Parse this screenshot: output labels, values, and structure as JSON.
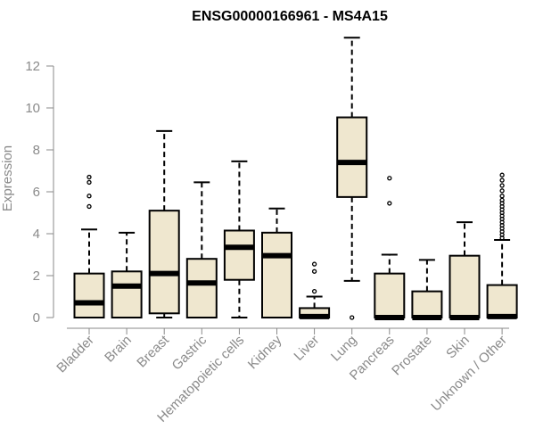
{
  "chart_data": {
    "type": "boxplot",
    "title": "ENSG00000166961 - MS4A15",
    "xlabel": "",
    "ylabel": "Expression",
    "ylim": [
      0,
      12.6
    ],
    "yticks": [
      0,
      2,
      4,
      6,
      8,
      10,
      12
    ],
    "box_color": "#efe7cf",
    "categories": [
      "Bladder",
      "Brain",
      "Breast",
      "Gastric",
      "Hematopoietic cells",
      "Kidney",
      "Liver",
      "Lung",
      "Pancreas",
      "Prostate",
      "Skin",
      "Unknown / Other"
    ],
    "boxes": [
      {
        "category": "Bladder",
        "whisker_low": 0,
        "q1": 0,
        "median": 0.7,
        "q3": 2.1,
        "whisker_high": 4.2,
        "outliers": [
          5.3,
          5.8,
          6.45,
          6.7
        ]
      },
      {
        "category": "Brain",
        "whisker_low": 0,
        "q1": 0,
        "median": 1.5,
        "q3": 2.2,
        "whisker_high": 4.05,
        "outliers": []
      },
      {
        "category": "Breast",
        "whisker_low": 0,
        "q1": 0.2,
        "median": 2.1,
        "q3": 5.1,
        "whisker_high": 8.9,
        "outliers": []
      },
      {
        "category": "Gastric",
        "whisker_low": 0,
        "q1": 0,
        "median": 1.65,
        "q3": 2.8,
        "whisker_high": 6.45,
        "outliers": []
      },
      {
        "category": "Hematopoietic cells",
        "whisker_low": 0,
        "q1": 1.8,
        "median": 3.35,
        "q3": 4.15,
        "whisker_high": 7.45,
        "outliers": []
      },
      {
        "category": "Kidney",
        "whisker_low": 0,
        "q1": 0,
        "median": 2.95,
        "q3": 4.05,
        "whisker_high": 5.2,
        "outliers": []
      },
      {
        "category": "Liver",
        "whisker_low": 0,
        "q1": 0,
        "median": 0.05,
        "q3": 0.45,
        "whisker_high": 1.0,
        "outliers": [
          1.25,
          2.2,
          2.55
        ]
      },
      {
        "category": "Lung",
        "whisker_low": 1.75,
        "q1": 5.75,
        "median": 7.4,
        "q3": 9.55,
        "whisker_high": 13.35,
        "outliers": [
          0
        ]
      },
      {
        "category": "Pancreas",
        "whisker_low": 0,
        "q1": 0,
        "median": 0,
        "q3": 2.1,
        "whisker_high": 3.0,
        "outliers": [
          5.45,
          6.65
        ]
      },
      {
        "category": "Prostate",
        "whisker_low": 0,
        "q1": 0,
        "median": 0,
        "q3": 1.25,
        "whisker_high": 2.75,
        "outliers": []
      },
      {
        "category": "Skin",
        "whisker_low": 0,
        "q1": 0,
        "median": 0,
        "q3": 2.95,
        "whisker_high": 4.55,
        "outliers": []
      },
      {
        "category": "Unknown / Other",
        "whisker_low": 0,
        "q1": 0,
        "median": 0.05,
        "q3": 1.55,
        "whisker_high": 3.7,
        "outliers": [
          3.8,
          3.95,
          4.1,
          4.25,
          4.4,
          4.55,
          4.7,
          4.85,
          5.0,
          5.15,
          5.3,
          5.45,
          5.6,
          5.8,
          6.05,
          6.3,
          6.55,
          6.8
        ]
      }
    ]
  }
}
